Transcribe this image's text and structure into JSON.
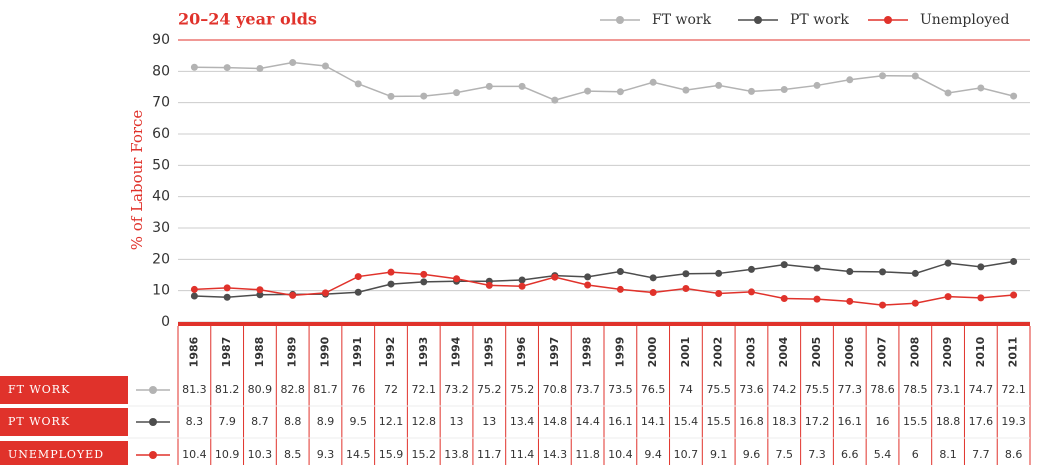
{
  "chart_data": {
    "type": "line",
    "title": "20–24 year olds",
    "y_label": "% of Labour Force",
    "categories": [
      "1986",
      "1987",
      "1988",
      "1989",
      "1990",
      "1991",
      "1992",
      "1993",
      "1994",
      "1995",
      "1996",
      "1997",
      "1998",
      "1999",
      "2000",
      "2001",
      "2002",
      "2003",
      "2004",
      "2005",
      "2006",
      "2007",
      "2008",
      "2009",
      "2010",
      "2011"
    ],
    "series": [
      {
        "name": "FT work",
        "color": "#b3b3b3",
        "values": [
          81.3,
          81.2,
          80.9,
          82.8,
          81.7,
          76,
          72,
          72.1,
          73.2,
          75.2,
          75.2,
          70.8,
          73.7,
          73.5,
          76.5,
          74,
          75.5,
          73.6,
          74.2,
          75.5,
          77.3,
          78.6,
          78.5,
          73.1,
          74.7,
          72.1
        ]
      },
      {
        "name": "PT work",
        "color": "#4d4d4d",
        "values": [
          8.3,
          7.9,
          8.7,
          8.8,
          8.9,
          9.5,
          12.1,
          12.8,
          13,
          13,
          13.4,
          14.8,
          14.4,
          16.1,
          14.1,
          15.4,
          15.5,
          16.8,
          18.3,
          17.2,
          16.1,
          16,
          15.5,
          18.8,
          17.6,
          19.3
        ]
      },
      {
        "name": "Unemployed",
        "color": "#e0322b",
        "values": [
          10.4,
          10.9,
          10.3,
          8.5,
          9.3,
          14.5,
          15.9,
          15.2,
          13.8,
          11.7,
          11.4,
          14.3,
          11.8,
          10.4,
          9.4,
          10.7,
          9.1,
          9.6,
          7.5,
          7.3,
          6.6,
          5.4,
          6,
          8.1,
          7.7,
          8.6
        ]
      }
    ],
    "ylim": [
      0,
      90
    ],
    "yticks": [
      0,
      10,
      20,
      30,
      40,
      50,
      60,
      70,
      80,
      90
    ],
    "grid": true,
    "legend": "top-right"
  }
}
